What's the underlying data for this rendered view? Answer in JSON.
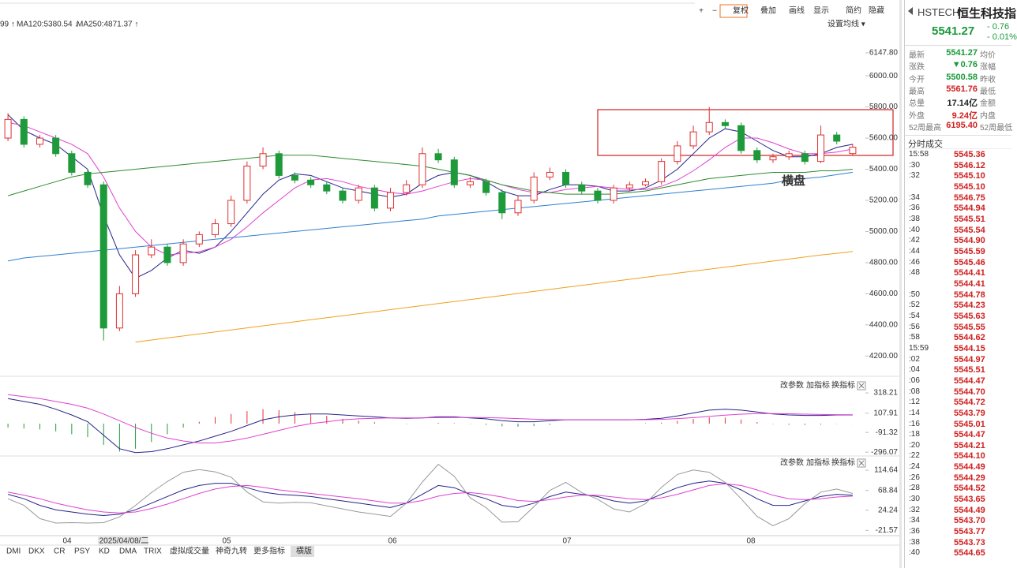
{
  "toolbar": {
    "buttons": [
      "+",
      "−",
      "复权",
      "叠加",
      "画线",
      "显示",
      "简约",
      "隐藏"
    ]
  },
  "ma_legend": {
    "items": [
      "99 ↑",
      "MA120:5380.54 ↓",
      "MA250:4871.37 ↑"
    ],
    "colors": [
      "#444444",
      "#2f7fd0",
      "#f0a020"
    ],
    "settings": "设置均线 ▾"
  },
  "panel_buttons": [
    "改参数",
    "加指标",
    "换指标"
  ],
  "chart_data": [
    {
      "type": "candlestick",
      "open": [
        5600,
        5720,
        5560,
        5600,
        5500,
        5380,
        5300,
        4380,
        4600,
        4850,
        4900,
        4800,
        4920,
        4980,
        5050,
        5200,
        5420,
        5500,
        5360,
        5330,
        5300,
        5260,
        5200,
        5280,
        5150,
        5250,
        5300,
        5500,
        5460,
        5300,
        5320,
        5250,
        5120,
        5200,
        5350,
        5380,
        5300,
        5260,
        5200,
        5280,
        5300,
        5320,
        5450,
        5550,
        5640,
        5700,
        5680,
        5520,
        5460,
        5480,
        5500,
        5450,
        5620,
        5500.58
      ],
      "high": [
        5760,
        5740,
        5620,
        5620,
        5520,
        5400,
        5320,
        4650,
        4880,
        4950,
        4920,
        4950,
        5000,
        5080,
        5230,
        5450,
        5540,
        5520,
        5380,
        5350,
        5320,
        5280,
        5300,
        5300,
        5280,
        5330,
        5540,
        5530,
        5480,
        5350,
        5340,
        5270,
        5230,
        5380,
        5410,
        5400,
        5320,
        5280,
        5300,
        5320,
        5340,
        5470,
        5580,
        5680,
        5800,
        5720,
        5700,
        5540,
        5500,
        5520,
        5520,
        5680,
        5640,
        5561.76
      ],
      "low": [
        5580,
        5540,
        5540,
        5480,
        5360,
        5280,
        4300,
        4360,
        4580,
        4830,
        4780,
        4780,
        4900,
        4960,
        5030,
        5180,
        5400,
        5340,
        5310,
        5280,
        5240,
        5180,
        5180,
        5130,
        5130,
        5230,
        5280,
        5440,
        5280,
        5280,
        5230,
        5080,
        5100,
        5180,
        5330,
        5280,
        5240,
        5180,
        5180,
        5260,
        5290,
        5300,
        5430,
        5530,
        5620,
        5660,
        5500,
        5440,
        5440,
        5460,
        5430,
        5440,
        5560,
        5490
      ],
      "close": [
        5720,
        5560,
        5600,
        5500,
        5380,
        5300,
        4380,
        4600,
        4850,
        4900,
        4800,
        4920,
        4980,
        5050,
        5200,
        5420,
        5500,
        5360,
        5330,
        5300,
        5260,
        5200,
        5280,
        5150,
        5250,
        5300,
        5500,
        5460,
        5300,
        5320,
        5250,
        5120,
        5200,
        5350,
        5380,
        5300,
        5260,
        5200,
        5280,
        5300,
        5320,
        5450,
        5550,
        5640,
        5700,
        5680,
        5520,
        5460,
        5480,
        5500,
        5450,
        5620,
        5580,
        5541.27
      ],
      "up_color": "#e03030",
      "down_color": "#1f9a3a",
      "series": [
        {
          "color": "#24248a",
          "values": [
            5750,
            5650,
            5600,
            5560,
            5480,
            5400,
            5100,
            4850,
            4700,
            4750,
            4830,
            4880,
            4860,
            4900,
            5000,
            5120,
            5240,
            5330,
            5370,
            5360,
            5320,
            5280,
            5260,
            5240,
            5220,
            5240,
            5310,
            5360,
            5380,
            5360,
            5320,
            5260,
            5230,
            5230,
            5270,
            5300,
            5300,
            5290,
            5260,
            5260,
            5280,
            5330,
            5400,
            5500,
            5600,
            5660,
            5640,
            5580,
            5520,
            5480,
            5480,
            5500,
            5540,
            5560
          ]
        },
        {
          "color": "#e040d0",
          "values": [
            5700,
            5680,
            5640,
            5600,
            5560,
            5500,
            5350,
            5150,
            5000,
            4900,
            4850,
            4860,
            4870,
            4900,
            4950,
            5030,
            5120,
            5200,
            5280,
            5330,
            5340,
            5320,
            5290,
            5270,
            5250,
            5240,
            5260,
            5290,
            5320,
            5340,
            5330,
            5300,
            5270,
            5250,
            5250,
            5270,
            5280,
            5290,
            5280,
            5270,
            5270,
            5290,
            5330,
            5390,
            5460,
            5540,
            5600,
            5600,
            5570,
            5530,
            5500,
            5500,
            5510,
            5530
          ]
        },
        {
          "color": "#2e8b2e",
          "values": [
            5230,
            5260,
            5290,
            5320,
            5350,
            5370,
            5380,
            5390,
            5400,
            5410,
            5420,
            5430,
            5440,
            5450,
            5460,
            5470,
            5480,
            5490,
            5490,
            5490,
            5480,
            5470,
            5460,
            5450,
            5440,
            5430,
            5420,
            5400,
            5380,
            5360,
            5330,
            5300,
            5280,
            5260,
            5250,
            5240,
            5240,
            5240,
            5240,
            5250,
            5260,
            5280,
            5300,
            5320,
            5340,
            5350,
            5360,
            5370,
            5380,
            5380,
            5380,
            5390,
            5390,
            5400
          ]
        },
        {
          "color": "#2f7fd0",
          "values": [
            4810,
            4830,
            4840,
            4850,
            4860,
            4870,
            4880,
            4890,
            4900,
            4910,
            4920,
            4930,
            4940,
            4950,
            4960,
            4970,
            4980,
            4990,
            5000,
            5010,
            5020,
            5030,
            5040,
            5050,
            5060,
            5070,
            5080,
            5100,
            5110,
            5120,
            5130,
            5140,
            5150,
            5160,
            5170,
            5180,
            5190,
            5200,
            5210,
            5220,
            5230,
            5240,
            5250,
            5260,
            5270,
            5280,
            5290,
            5300,
            5310,
            5330,
            5340,
            5350,
            5365,
            5380.54
          ]
        },
        {
          "color": "#f0a020",
          "values": [
            null,
            null,
            null,
            null,
            null,
            null,
            null,
            null,
            4290,
            4303,
            4316,
            4329,
            4342,
            4355,
            4368,
            4381,
            4394,
            4407,
            4420,
            4433,
            4446,
            4459,
            4472,
            4485,
            4498,
            4511,
            4524,
            4537,
            4550,
            4563,
            4576,
            4589,
            4602,
            4615,
            4628,
            4641,
            4654,
            4667,
            4680,
            4693,
            4706,
            4719,
            4732,
            4745,
            4758,
            4771,
            4784,
            4797,
            4810,
            4823,
            4836,
            4849,
            4860,
            4871.37
          ]
        }
      ],
      "ylim": [
        4080,
        6183
      ],
      "yticks": [
        {
          "value": 6147.8,
          "label": "6147.80"
        },
        {
          "value": 6000,
          "label": "6000.00"
        },
        {
          "value": 5800,
          "label": "5800.00"
        },
        {
          "value": 5600,
          "label": "5600.00"
        },
        {
          "value": 5400,
          "label": "5400.00"
        },
        {
          "value": 5200,
          "label": "5200.00"
        },
        {
          "value": 5000,
          "label": "5000.00"
        },
        {
          "value": 4800,
          "label": "4800.00"
        },
        {
          "value": 4600,
          "label": "4600.00"
        },
        {
          "value": 4400,
          "label": "4400.00"
        },
        {
          "value": 4200,
          "label": "4200.00"
        }
      ],
      "annotation": "横盘",
      "grid": false
    },
    {
      "type": "macd",
      "hist": [
        -40,
        -50,
        -60,
        -80,
        -110,
        -140,
        -220,
        -290,
        -260,
        -190,
        -110,
        -40,
        20,
        70,
        100,
        130,
        150,
        140,
        120,
        100,
        80,
        50,
        30,
        15,
        0,
        -5,
        0,
        8,
        6,
        -4,
        -12,
        -28,
        -32,
        -26,
        -12,
        0,
        0,
        0,
        0,
        0,
        4,
        11,
        28,
        48,
        65,
        62,
        42,
        16,
        -4,
        -12,
        -13,
        -10,
        -3,
        -2
      ],
      "up_color": "#e03030",
      "down_color": "#1f9a3a",
      "series": [
        {
          "color": "#24248a",
          "values": [
            260,
            230,
            200,
            150,
            90,
            20,
            -120,
            -260,
            -300,
            -290,
            -260,
            -220,
            -180,
            -130,
            -80,
            -20,
            40,
            70,
            90,
            100,
            100,
            90,
            80,
            70,
            60,
            55,
            60,
            70,
            70,
            60,
            50,
            30,
            20,
            20,
            30,
            40,
            40,
            40,
            40,
            40,
            45,
            55,
            80,
            110,
            140,
            150,
            140,
            120,
            100,
            90,
            85,
            85,
            90,
            90
          ]
        },
        {
          "color": "#e040d0",
          "values": [
            300,
            280,
            260,
            230,
            200,
            160,
            100,
            30,
            -40,
            -100,
            -150,
            -180,
            -200,
            -200,
            -180,
            -150,
            -110,
            -70,
            -30,
            0,
            20,
            40,
            50,
            55,
            60,
            60,
            60,
            62,
            64,
            64,
            62,
            58,
            52,
            46,
            42,
            40,
            40,
            40,
            40,
            40,
            41,
            44,
            52,
            62,
            75,
            88,
            98,
            104,
            104,
            102,
            98,
            95,
            93,
            92
          ]
        }
      ],
      "ylim": [
        -327,
        466
      ],
      "yticks": [
        318.21,
        107.91,
        -91.32,
        -296.07
      ],
      "grid": false
    },
    {
      "type": "line",
      "series": [
        {
          "color": "#999999",
          "values": [
            50,
            35,
            5,
            -5,
            -4,
            -5,
            -4,
            9,
            35,
            64,
            89,
            110,
            116,
            111,
            99,
            65,
            43,
            40,
            42,
            41,
            34,
            27,
            20,
            15,
            10,
            40,
            88,
            128,
            101,
            52,
            30,
            -3,
            -2,
            32,
            69,
            87,
            64,
            49,
            27,
            20,
            39,
            76,
            105,
            115,
            110,
            87,
            50,
            10,
            -11,
            5,
            39,
            65,
            72,
            62
          ]
        },
        {
          "color": "#24248a",
          "values": [
            60,
            50,
            35,
            25,
            20,
            15,
            12,
            15,
            25,
            40,
            55,
            70,
            80,
            85,
            85,
            75,
            65,
            60,
            58,
            55,
            50,
            45,
            40,
            35,
            30,
            40,
            60,
            80,
            75,
            60,
            50,
            35,
            30,
            40,
            55,
            65,
            60,
            55,
            45,
            40,
            45,
            60,
            75,
            85,
            90,
            85,
            70,
            50,
            35,
            35,
            45,
            55,
            60,
            58
          ]
        },
        {
          "color": "#e040d0",
          "values": [
            65,
            58,
            50,
            40,
            32,
            25,
            20,
            18,
            20,
            28,
            38,
            50,
            62,
            72,
            78,
            80,
            76,
            70,
            66,
            62,
            58,
            54,
            50,
            45,
            40,
            40,
            46,
            56,
            62,
            64,
            60,
            54,
            46,
            44,
            48,
            54,
            58,
            58,
            54,
            50,
            48,
            52,
            60,
            70,
            80,
            84,
            80,
            70,
            58,
            50,
            48,
            50,
            54,
            56
          ]
        }
      ],
      "ylim": [
        -31.7,
        143.3
      ],
      "yticks": [
        114.64,
        68.84,
        24.24,
        -21.57
      ],
      "grid": false
    }
  ],
  "x_axis": {
    "labels": [
      "04",
      "2025/04/08/二",
      "05",
      "06",
      "07",
      "08"
    ]
  },
  "indicator_tabs": [
    "DMI",
    "DKX",
    "CR",
    "PSY",
    "KD",
    "DMA",
    "TRIX",
    "虚拟成交量",
    "神奇九转",
    "更多指标",
    "横版"
  ],
  "quote": {
    "code": "HSTECH",
    "name": "恒生科技指",
    "price": "5541.27",
    "change": "- 0.76",
    "change_pct": "- 0.01%",
    "rows": [
      {
        "label": "最新",
        "value": "5541.27",
        "label2": "均价",
        "color": "#1a9a3a"
      },
      {
        "label": "涨跌",
        "value": "▼0.76",
        "label2": "涨幅",
        "color": "#1a9a3a"
      },
      {
        "label": "今开",
        "value": "5500.58",
        "label2": "昨收",
        "color": "#1a9a3a"
      },
      {
        "label": "最高",
        "value": "5561.76",
        "label2": "最低",
        "color": "#d02020"
      },
      {
        "label": "总量",
        "value": "17.14亿",
        "label2": "金额",
        "color": "#222222"
      },
      {
        "label": "外盘",
        "value": "9.24亿",
        "label2": "内盘",
        "color": "#d02020"
      },
      {
        "label": "52周最高",
        "value": "6195.40",
        "label2": "52周最低",
        "color": "#d02020"
      }
    ]
  },
  "trades": {
    "title": "分时成交",
    "rows": [
      [
        "15:58",
        "5545.36"
      ],
      [
        ":30",
        "5546.12"
      ],
      [
        ":32",
        "5545.10"
      ],
      [
        null,
        "5545.10"
      ],
      [
        ":34",
        "5546.75"
      ],
      [
        ":36",
        "5544.94"
      ],
      [
        ":38",
        "5545.51"
      ],
      [
        ":40",
        "5545.54"
      ],
      [
        ":42",
        "5544.90"
      ],
      [
        ":44",
        "5545.59"
      ],
      [
        ":46",
        "5545.46"
      ],
      [
        ":48",
        "5544.41"
      ],
      [
        null,
        "5544.41"
      ],
      [
        ":50",
        "5544.78"
      ],
      [
        ":52",
        "5544.23"
      ],
      [
        ":54",
        "5545.63"
      ],
      [
        ":56",
        "5545.55"
      ],
      [
        ":58",
        "5544.62"
      ],
      [
        "15:59",
        "5544.15"
      ],
      [
        ":02",
        "5544.97"
      ],
      [
        ":04",
        "5545.51"
      ],
      [
        ":06",
        "5544.47"
      ],
      [
        ":08",
        "5544.70"
      ],
      [
        ":12",
        "5544.72"
      ],
      [
        ":14",
        "5543.79"
      ],
      [
        ":16",
        "5545.01"
      ],
      [
        ":18",
        "5544.47"
      ],
      [
        ":20",
        "5544.21"
      ],
      [
        ":22",
        "5544.10"
      ],
      [
        ":24",
        "5544.49"
      ],
      [
        ":26",
        "5544.29"
      ],
      [
        ":28",
        "5544.52"
      ],
      [
        ":30",
        "5543.65"
      ],
      [
        ":32",
        "5544.49"
      ],
      [
        ":34",
        "5543.70"
      ],
      [
        ":36",
        "5543.77"
      ],
      [
        ":38",
        "5543.73"
      ],
      [
        ":40",
        "5544.65"
      ]
    ]
  }
}
